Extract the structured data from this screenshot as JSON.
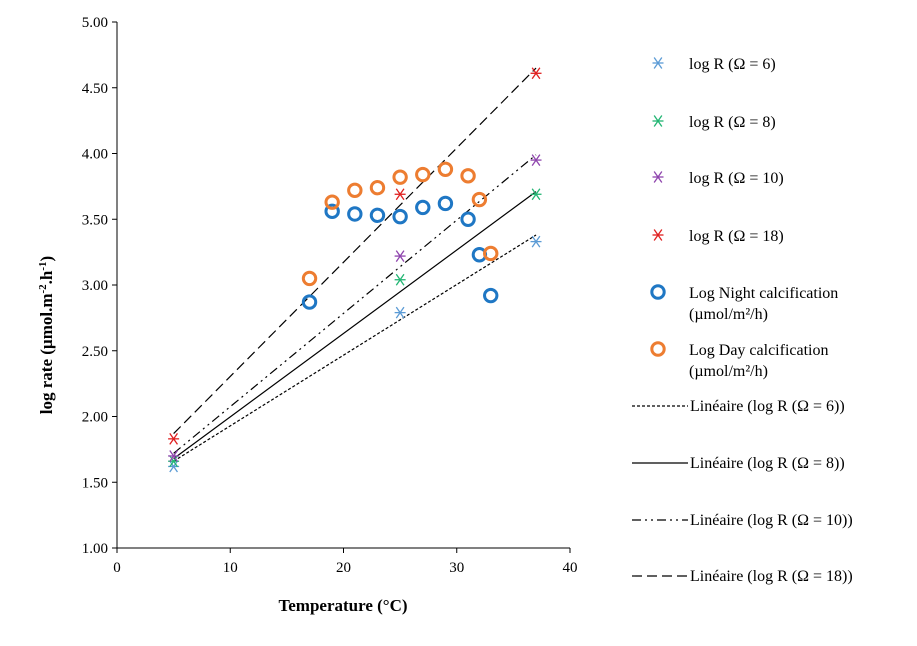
{
  "chart_data": {
    "type": "scatter",
    "xlabel": "Temperature (°C)",
    "ylabel": "log rate (µmol.m-2.h-1)",
    "ylabel_parts": [
      "log rate (µmol.m",
      "-2",
      ".h",
      "-1",
      ")"
    ],
    "xlim": [
      0,
      40
    ],
    "ylim": [
      1.0,
      5.0
    ],
    "x_ticks": [
      {
        "value": 0,
        "label": "0"
      },
      {
        "value": 10,
        "label": "10"
      },
      {
        "value": 20,
        "label": "20"
      },
      {
        "value": 30,
        "label": "30"
      },
      {
        "value": 40,
        "label": "40"
      }
    ],
    "y_ticks": [
      {
        "value": 1.0,
        "label": "1.00"
      },
      {
        "value": 1.5,
        "label": "1.50"
      },
      {
        "value": 2.0,
        "label": "2.00"
      },
      {
        "value": 2.5,
        "label": "2.50"
      },
      {
        "value": 3.0,
        "label": "3.00"
      },
      {
        "value": 3.5,
        "label": "3.50"
      },
      {
        "value": 4.0,
        "label": "4.00"
      },
      {
        "value": 4.5,
        "label": "4.50"
      },
      {
        "value": 5.0,
        "label": "5.00"
      }
    ],
    "grid": false,
    "legend_position": "right",
    "series": [
      {
        "name": "log R (Ω = 6)",
        "marker": "asterisk",
        "color": "#5b9bd5",
        "points": [
          [
            5,
            1.62
          ],
          [
            25,
            2.79
          ],
          [
            37,
            3.33
          ]
        ]
      },
      {
        "name": "log R (Ω = 8)",
        "marker": "asterisk",
        "color": "#22b573",
        "points": [
          [
            5,
            1.66
          ],
          [
            25,
            3.04
          ],
          [
            37,
            3.69
          ]
        ]
      },
      {
        "name": "log R (Ω = 10)",
        "marker": "asterisk",
        "color": "#8e44ad",
        "points": [
          [
            5,
            1.7
          ],
          [
            25,
            3.22
          ],
          [
            37,
            3.95
          ]
        ]
      },
      {
        "name": "log R (Ω = 18)",
        "marker": "asterisk",
        "color": "#e02020",
        "points": [
          [
            5,
            1.83
          ],
          [
            25,
            3.69
          ],
          [
            37,
            4.61
          ]
        ]
      },
      {
        "name": "Log Night calcification (µmol/m²/h)",
        "marker": "circle",
        "color": "#1f77c4",
        "points": [
          [
            17,
            2.87
          ],
          [
            19,
            3.56
          ],
          [
            21,
            3.54
          ],
          [
            23,
            3.53
          ],
          [
            25,
            3.52
          ],
          [
            27,
            3.59
          ],
          [
            29,
            3.62
          ],
          [
            31,
            3.5
          ],
          [
            32,
            3.23
          ],
          [
            33,
            2.92
          ]
        ]
      },
      {
        "name": "Log Day calcification (µmol/m²/h)",
        "marker": "circle",
        "color": "#ed7d31",
        "points": [
          [
            17,
            3.05
          ],
          [
            19,
            3.63
          ],
          [
            21,
            3.72
          ],
          [
            23,
            3.74
          ],
          [
            25,
            3.82
          ],
          [
            27,
            3.84
          ],
          [
            29,
            3.88
          ],
          [
            31,
            3.83
          ],
          [
            32,
            3.65
          ],
          [
            33,
            3.24
          ]
        ]
      }
    ],
    "trendlines": [
      {
        "name": "Linéaire (log R (Ω = 6))",
        "dash": "dotted",
        "from": [
          5,
          1.66
        ],
        "to": [
          37,
          3.38
        ]
      },
      {
        "name": "Linéaire (log R (Ω = 8))",
        "dash": "solid",
        "from": [
          5,
          1.68
        ],
        "to": [
          37,
          3.71
        ]
      },
      {
        "name": "Linéaire (log R (Ω = 10))",
        "dash": "dashdotdot",
        "from": [
          5,
          1.72
        ],
        "to": [
          37,
          3.99
        ]
      },
      {
        "name": "Linéaire (log R (Ω = 18))",
        "dash": "dashed",
        "from": [
          5,
          1.87
        ],
        "to": [
          37,
          4.65
        ]
      }
    ]
  }
}
